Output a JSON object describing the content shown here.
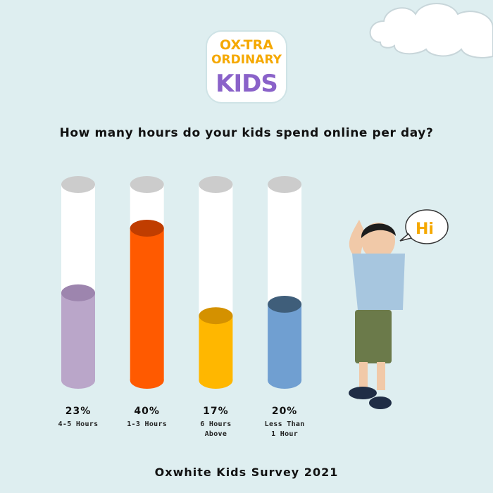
{
  "chart_data": {
    "type": "bar",
    "title": "How many hours do your kids spend online per day?",
    "logo": [
      "OX-TRA",
      "ORDINARY",
      "KIDS"
    ],
    "bubble": "Hi",
    "categories": [
      "4-5 Hours",
      "1-3 Hours",
      "6 Hours Above",
      "Less Than 1 Hour"
    ],
    "values": [
      23,
      40,
      17,
      20
    ],
    "value_labels": [
      "23%",
      "40%",
      "17%",
      "20%"
    ],
    "colors": [
      "#baa6c9",
      "#ff5a00",
      "#ffb700",
      "#709fd1"
    ],
    "cap_colors": [
      "#9d85ae",
      "#c03d00",
      "#d49100",
      "#3f5e7a"
    ],
    "footer": "Oxwhite Kids Survey 2021"
  }
}
